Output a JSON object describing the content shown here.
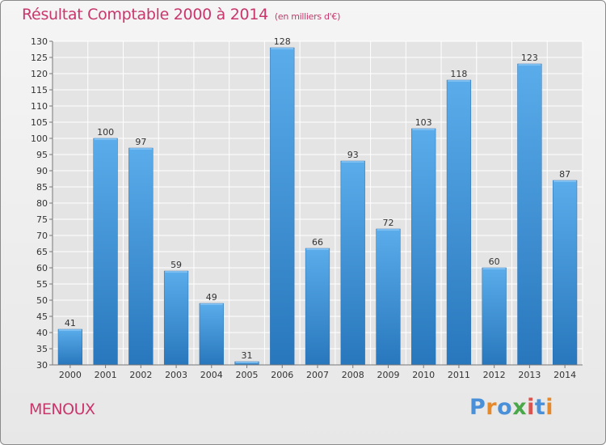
{
  "chart_data": {
    "type": "bar",
    "title": "Résultat Comptable 2000 à 2014",
    "subtitle": "(en milliers d'€)",
    "categories": [
      "2000",
      "2001",
      "2002",
      "2003",
      "2004",
      "2005",
      "2006",
      "2007",
      "2008",
      "2009",
      "2010",
      "2011",
      "2012",
      "2013",
      "2014"
    ],
    "values": [
      41,
      100,
      97,
      59,
      49,
      31,
      128,
      66,
      93,
      72,
      103,
      118,
      60,
      123,
      87
    ],
    "ylim": [
      30,
      130
    ],
    "yticks": [
      30,
      35,
      40,
      45,
      50,
      55,
      60,
      65,
      70,
      75,
      80,
      85,
      90,
      95,
      100,
      105,
      110,
      115,
      120,
      125,
      130
    ],
    "xlabel": "",
    "ylabel": "",
    "grid": true,
    "bar_color": "#3a8fd4"
  },
  "location": {
    "name": "MENOUX"
  },
  "logo": {
    "text": "Proxiti",
    "colors": [
      "#4a90d9",
      "#e6892a",
      "#4a90d9",
      "#4aa84a",
      "#d9534f",
      "#4a90d9",
      "#e6892a"
    ]
  }
}
